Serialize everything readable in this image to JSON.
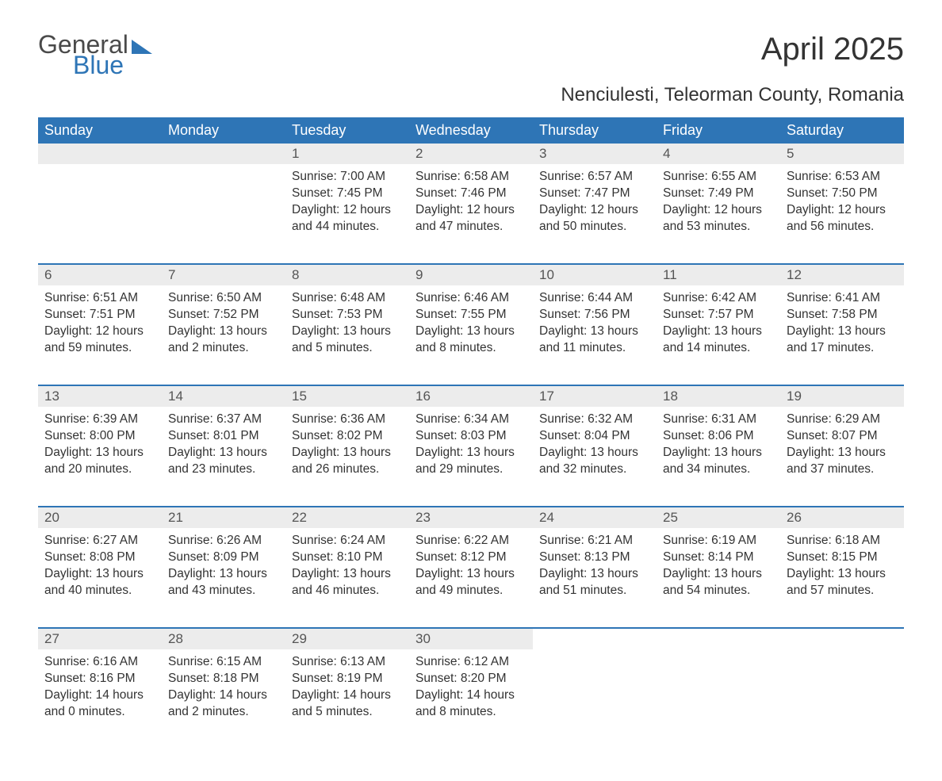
{
  "brand": {
    "word1": "General",
    "word2": "Blue"
  },
  "title": "April 2025",
  "subtitle": "Nenciulesti, Teleorman County, Romania",
  "colors": {
    "header_bg": "#2e75b6",
    "header_text": "#ffffff",
    "daynum_bg": "#ececec",
    "row_border": "#2e75b6",
    "page_bg": "#ffffff",
    "text": "#333333",
    "brand_gray": "#4a4a4a",
    "brand_blue": "#2e75b6"
  },
  "typography": {
    "title_fontsize": 40,
    "subtitle_fontsize": 24,
    "header_fontsize": 18,
    "daynum_fontsize": 17,
    "cell_fontsize": 15.5
  },
  "weekdays": [
    "Sunday",
    "Monday",
    "Tuesday",
    "Wednesday",
    "Thursday",
    "Friday",
    "Saturday"
  ],
  "weeks": [
    [
      null,
      null,
      {
        "n": "1",
        "sr": "Sunrise: 7:00 AM",
        "ss": "Sunset: 7:45 PM",
        "d1": "Daylight: 12 hours",
        "d2": "and 44 minutes."
      },
      {
        "n": "2",
        "sr": "Sunrise: 6:58 AM",
        "ss": "Sunset: 7:46 PM",
        "d1": "Daylight: 12 hours",
        "d2": "and 47 minutes."
      },
      {
        "n": "3",
        "sr": "Sunrise: 6:57 AM",
        "ss": "Sunset: 7:47 PM",
        "d1": "Daylight: 12 hours",
        "d2": "and 50 minutes."
      },
      {
        "n": "4",
        "sr": "Sunrise: 6:55 AM",
        "ss": "Sunset: 7:49 PM",
        "d1": "Daylight: 12 hours",
        "d2": "and 53 minutes."
      },
      {
        "n": "5",
        "sr": "Sunrise: 6:53 AM",
        "ss": "Sunset: 7:50 PM",
        "d1": "Daylight: 12 hours",
        "d2": "and 56 minutes."
      }
    ],
    [
      {
        "n": "6",
        "sr": "Sunrise: 6:51 AM",
        "ss": "Sunset: 7:51 PM",
        "d1": "Daylight: 12 hours",
        "d2": "and 59 minutes."
      },
      {
        "n": "7",
        "sr": "Sunrise: 6:50 AM",
        "ss": "Sunset: 7:52 PM",
        "d1": "Daylight: 13 hours",
        "d2": "and 2 minutes."
      },
      {
        "n": "8",
        "sr": "Sunrise: 6:48 AM",
        "ss": "Sunset: 7:53 PM",
        "d1": "Daylight: 13 hours",
        "d2": "and 5 minutes."
      },
      {
        "n": "9",
        "sr": "Sunrise: 6:46 AM",
        "ss": "Sunset: 7:55 PM",
        "d1": "Daylight: 13 hours",
        "d2": "and 8 minutes."
      },
      {
        "n": "10",
        "sr": "Sunrise: 6:44 AM",
        "ss": "Sunset: 7:56 PM",
        "d1": "Daylight: 13 hours",
        "d2": "and 11 minutes."
      },
      {
        "n": "11",
        "sr": "Sunrise: 6:42 AM",
        "ss": "Sunset: 7:57 PM",
        "d1": "Daylight: 13 hours",
        "d2": "and 14 minutes."
      },
      {
        "n": "12",
        "sr": "Sunrise: 6:41 AM",
        "ss": "Sunset: 7:58 PM",
        "d1": "Daylight: 13 hours",
        "d2": "and 17 minutes."
      }
    ],
    [
      {
        "n": "13",
        "sr": "Sunrise: 6:39 AM",
        "ss": "Sunset: 8:00 PM",
        "d1": "Daylight: 13 hours",
        "d2": "and 20 minutes."
      },
      {
        "n": "14",
        "sr": "Sunrise: 6:37 AM",
        "ss": "Sunset: 8:01 PM",
        "d1": "Daylight: 13 hours",
        "d2": "and 23 minutes."
      },
      {
        "n": "15",
        "sr": "Sunrise: 6:36 AM",
        "ss": "Sunset: 8:02 PM",
        "d1": "Daylight: 13 hours",
        "d2": "and 26 minutes."
      },
      {
        "n": "16",
        "sr": "Sunrise: 6:34 AM",
        "ss": "Sunset: 8:03 PM",
        "d1": "Daylight: 13 hours",
        "d2": "and 29 minutes."
      },
      {
        "n": "17",
        "sr": "Sunrise: 6:32 AM",
        "ss": "Sunset: 8:04 PM",
        "d1": "Daylight: 13 hours",
        "d2": "and 32 minutes."
      },
      {
        "n": "18",
        "sr": "Sunrise: 6:31 AM",
        "ss": "Sunset: 8:06 PM",
        "d1": "Daylight: 13 hours",
        "d2": "and 34 minutes."
      },
      {
        "n": "19",
        "sr": "Sunrise: 6:29 AM",
        "ss": "Sunset: 8:07 PM",
        "d1": "Daylight: 13 hours",
        "d2": "and 37 minutes."
      }
    ],
    [
      {
        "n": "20",
        "sr": "Sunrise: 6:27 AM",
        "ss": "Sunset: 8:08 PM",
        "d1": "Daylight: 13 hours",
        "d2": "and 40 minutes."
      },
      {
        "n": "21",
        "sr": "Sunrise: 6:26 AM",
        "ss": "Sunset: 8:09 PM",
        "d1": "Daylight: 13 hours",
        "d2": "and 43 minutes."
      },
      {
        "n": "22",
        "sr": "Sunrise: 6:24 AM",
        "ss": "Sunset: 8:10 PM",
        "d1": "Daylight: 13 hours",
        "d2": "and 46 minutes."
      },
      {
        "n": "23",
        "sr": "Sunrise: 6:22 AM",
        "ss": "Sunset: 8:12 PM",
        "d1": "Daylight: 13 hours",
        "d2": "and 49 minutes."
      },
      {
        "n": "24",
        "sr": "Sunrise: 6:21 AM",
        "ss": "Sunset: 8:13 PM",
        "d1": "Daylight: 13 hours",
        "d2": "and 51 minutes."
      },
      {
        "n": "25",
        "sr": "Sunrise: 6:19 AM",
        "ss": "Sunset: 8:14 PM",
        "d1": "Daylight: 13 hours",
        "d2": "and 54 minutes."
      },
      {
        "n": "26",
        "sr": "Sunrise: 6:18 AM",
        "ss": "Sunset: 8:15 PM",
        "d1": "Daylight: 13 hours",
        "d2": "and 57 minutes."
      }
    ],
    [
      {
        "n": "27",
        "sr": "Sunrise: 6:16 AM",
        "ss": "Sunset: 8:16 PM",
        "d1": "Daylight: 14 hours",
        "d2": "and 0 minutes."
      },
      {
        "n": "28",
        "sr": "Sunrise: 6:15 AM",
        "ss": "Sunset: 8:18 PM",
        "d1": "Daylight: 14 hours",
        "d2": "and 2 minutes."
      },
      {
        "n": "29",
        "sr": "Sunrise: 6:13 AM",
        "ss": "Sunset: 8:19 PM",
        "d1": "Daylight: 14 hours",
        "d2": "and 5 minutes."
      },
      {
        "n": "30",
        "sr": "Sunrise: 6:12 AM",
        "ss": "Sunset: 8:20 PM",
        "d1": "Daylight: 14 hours",
        "d2": "and 8 minutes."
      },
      null,
      null,
      null
    ]
  ]
}
